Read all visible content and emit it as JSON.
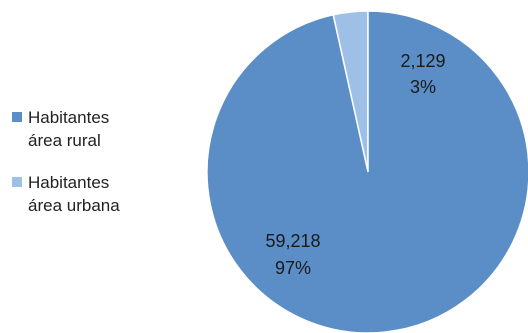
{
  "chart_data": {
    "type": "pie",
    "series": [
      {
        "name": "Habitantes área rural",
        "value": 59218,
        "label_value": "59,218",
        "label_percent": "97%",
        "color": "#5b8ec7"
      },
      {
        "name": "Habitantes área urbana",
        "value": 2129,
        "label_value": "2,129",
        "label_percent": "3%",
        "color": "#9fc0e6"
      }
    ],
    "legend_position": "left",
    "start_angle": "top, slices drawn counter-clockwise"
  }
}
